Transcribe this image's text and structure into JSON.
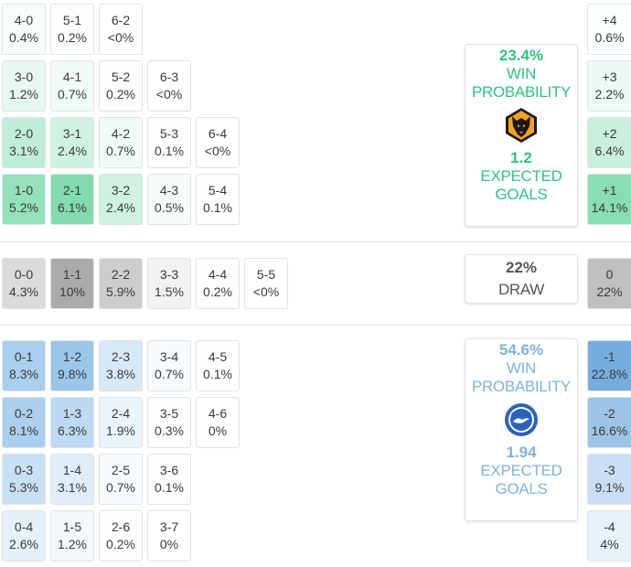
{
  "home": {
    "win_probability": "23.4%",
    "win_label": "WIN\nPROBABILITY",
    "expected_goals": "1.2",
    "xg_label": "EXPECTED\nGOALS",
    "accent": "#2ec27e",
    "logo_icon": "wolves-crest-icon",
    "scores": [
      {
        "score": "4-0",
        "prob": "0.4%"
      },
      {
        "score": "5-1",
        "prob": "0.2%"
      },
      {
        "score": "6-2",
        "prob": "<0%"
      },
      {
        "score": "3-0",
        "prob": "1.2%"
      },
      {
        "score": "4-1",
        "prob": "0.7%"
      },
      {
        "score": "5-2",
        "prob": "0.2%"
      },
      {
        "score": "6-3",
        "prob": "<0%"
      },
      {
        "score": "2-0",
        "prob": "3.1%"
      },
      {
        "score": "3-1",
        "prob": "2.4%"
      },
      {
        "score": "4-2",
        "prob": "0.7%"
      },
      {
        "score": "5-3",
        "prob": "0.1%"
      },
      {
        "score": "6-4",
        "prob": "<0%"
      },
      {
        "score": "1-0",
        "prob": "5.2%"
      },
      {
        "score": "2-1",
        "prob": "6.1%"
      },
      {
        "score": "3-2",
        "prob": "2.4%"
      },
      {
        "score": "4-3",
        "prob": "0.5%"
      },
      {
        "score": "5-4",
        "prob": "0.1%"
      }
    ],
    "margins": [
      {
        "label": "+4",
        "prob": "0.6%"
      },
      {
        "label": "+3",
        "prob": "2.2%"
      },
      {
        "label": "+2",
        "prob": "6.4%"
      },
      {
        "label": "+1",
        "prob": "14.1%"
      }
    ]
  },
  "draw": {
    "probability": "22%",
    "label": "DRAW",
    "scores": [
      {
        "score": "0-0",
        "prob": "4.3%"
      },
      {
        "score": "1-1",
        "prob": "10%"
      },
      {
        "score": "2-2",
        "prob": "5.9%"
      },
      {
        "score": "3-3",
        "prob": "1.5%"
      },
      {
        "score": "4-4",
        "prob": "0.2%"
      },
      {
        "score": "5-5",
        "prob": "<0%"
      }
    ],
    "margin": {
      "label": "0",
      "prob": "22%"
    }
  },
  "away": {
    "win_probability": "54.6%",
    "win_label": "WIN\nPROBABILITY",
    "expected_goals": "1.94",
    "xg_label": "EXPECTED\nGOALS",
    "accent": "#7fb2dc",
    "logo_icon": "brighton-crest-icon",
    "scores": [
      {
        "score": "0-1",
        "prob": "8.3%"
      },
      {
        "score": "1-2",
        "prob": "9.8%"
      },
      {
        "score": "2-3",
        "prob": "3.8%"
      },
      {
        "score": "3-4",
        "prob": "0.7%"
      },
      {
        "score": "4-5",
        "prob": "0.1%"
      },
      {
        "score": "0-2",
        "prob": "8.1%"
      },
      {
        "score": "1-3",
        "prob": "6.3%"
      },
      {
        "score": "2-4",
        "prob": "1.9%"
      },
      {
        "score": "3-5",
        "prob": "0.3%"
      },
      {
        "score": "4-6",
        "prob": "0%"
      },
      {
        "score": "0-3",
        "prob": "5.3%"
      },
      {
        "score": "1-4",
        "prob": "3.1%"
      },
      {
        "score": "2-5",
        "prob": "0.7%"
      },
      {
        "score": "3-6",
        "prob": "0.1%"
      },
      {
        "score": "0-4",
        "prob": "2.6%"
      },
      {
        "score": "1-5",
        "prob": "1.2%"
      },
      {
        "score": "2-6",
        "prob": "0.2%"
      },
      {
        "score": "3-7",
        "prob": "0%"
      }
    ],
    "margins": [
      {
        "label": "-1",
        "prob": "22.8%"
      },
      {
        "label": "-2",
        "prob": "16.6%"
      },
      {
        "label": "-3",
        "prob": "9.1%"
      },
      {
        "label": "-4",
        "prob": "4%"
      }
    ]
  }
}
